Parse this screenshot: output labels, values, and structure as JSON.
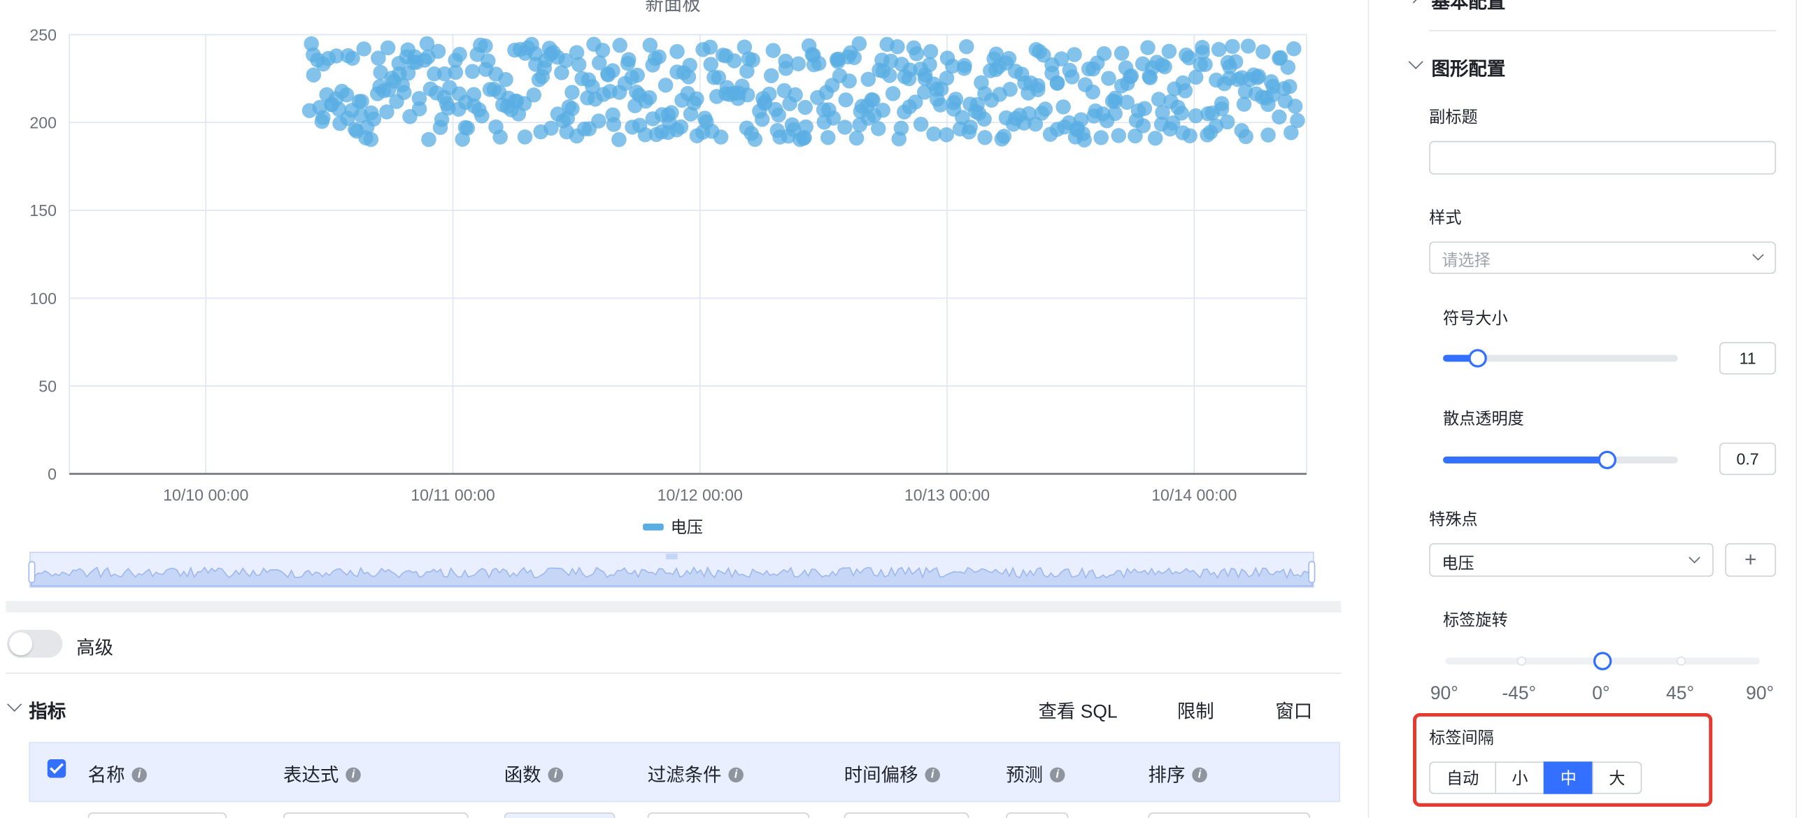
{
  "chart_data": {
    "type": "scatter",
    "title": "新面板",
    "series": [
      {
        "name": "电压",
        "y_range": [
          190,
          245
        ],
        "x_range": [
          "10/10 10:00",
          "10/14 10:00"
        ],
        "point_count": 500
      }
    ],
    "x_ticks": [
      "10/10 00:00",
      "10/11 00:00",
      "10/12 00:00",
      "10/13 00:00",
      "10/14 00:00"
    ],
    "y_ticks": [
      "0",
      "50",
      "100",
      "150",
      "200",
      "250"
    ],
    "ylim": [
      0,
      250
    ],
    "grid": true,
    "legend": "bottom-center",
    "color": "#5aade3"
  },
  "advanced": {
    "label": "高级",
    "enabled": false
  },
  "metrics": {
    "title": "指标",
    "actions": [
      "查看 SQL",
      "限制",
      "窗口"
    ],
    "columns": [
      "名称",
      "表达式",
      "函数",
      "过滤条件",
      "时间偏移",
      "预测",
      "排序"
    ]
  },
  "panel": {
    "basic_section": "基本配置",
    "graph_section": "图形配置",
    "subtitle_label": "副标题",
    "subtitle_value": "",
    "style_label": "样式",
    "style_placeholder": "请选择",
    "symbol_size_label": "符号大小",
    "symbol_size_value": "11",
    "symbol_size_fraction": 0.15,
    "opacity_label": "散点透明度",
    "opacity_value": "0.7",
    "opacity_fraction": 0.7,
    "special_label": "特殊点",
    "special_value": "电压",
    "add_symbol": "+",
    "rotate_label": "标签旋转",
    "rotate_marks": [
      "90°",
      "-45°",
      "0°",
      "45°",
      "90°"
    ],
    "rotate_value_fraction": 0.5,
    "interval_label": "标签间隔",
    "interval_options": [
      "自动",
      "小",
      "中",
      "大"
    ],
    "interval_selected": "中",
    "highlight_color": "#e8392e",
    "accent_color": "#3370ff"
  }
}
